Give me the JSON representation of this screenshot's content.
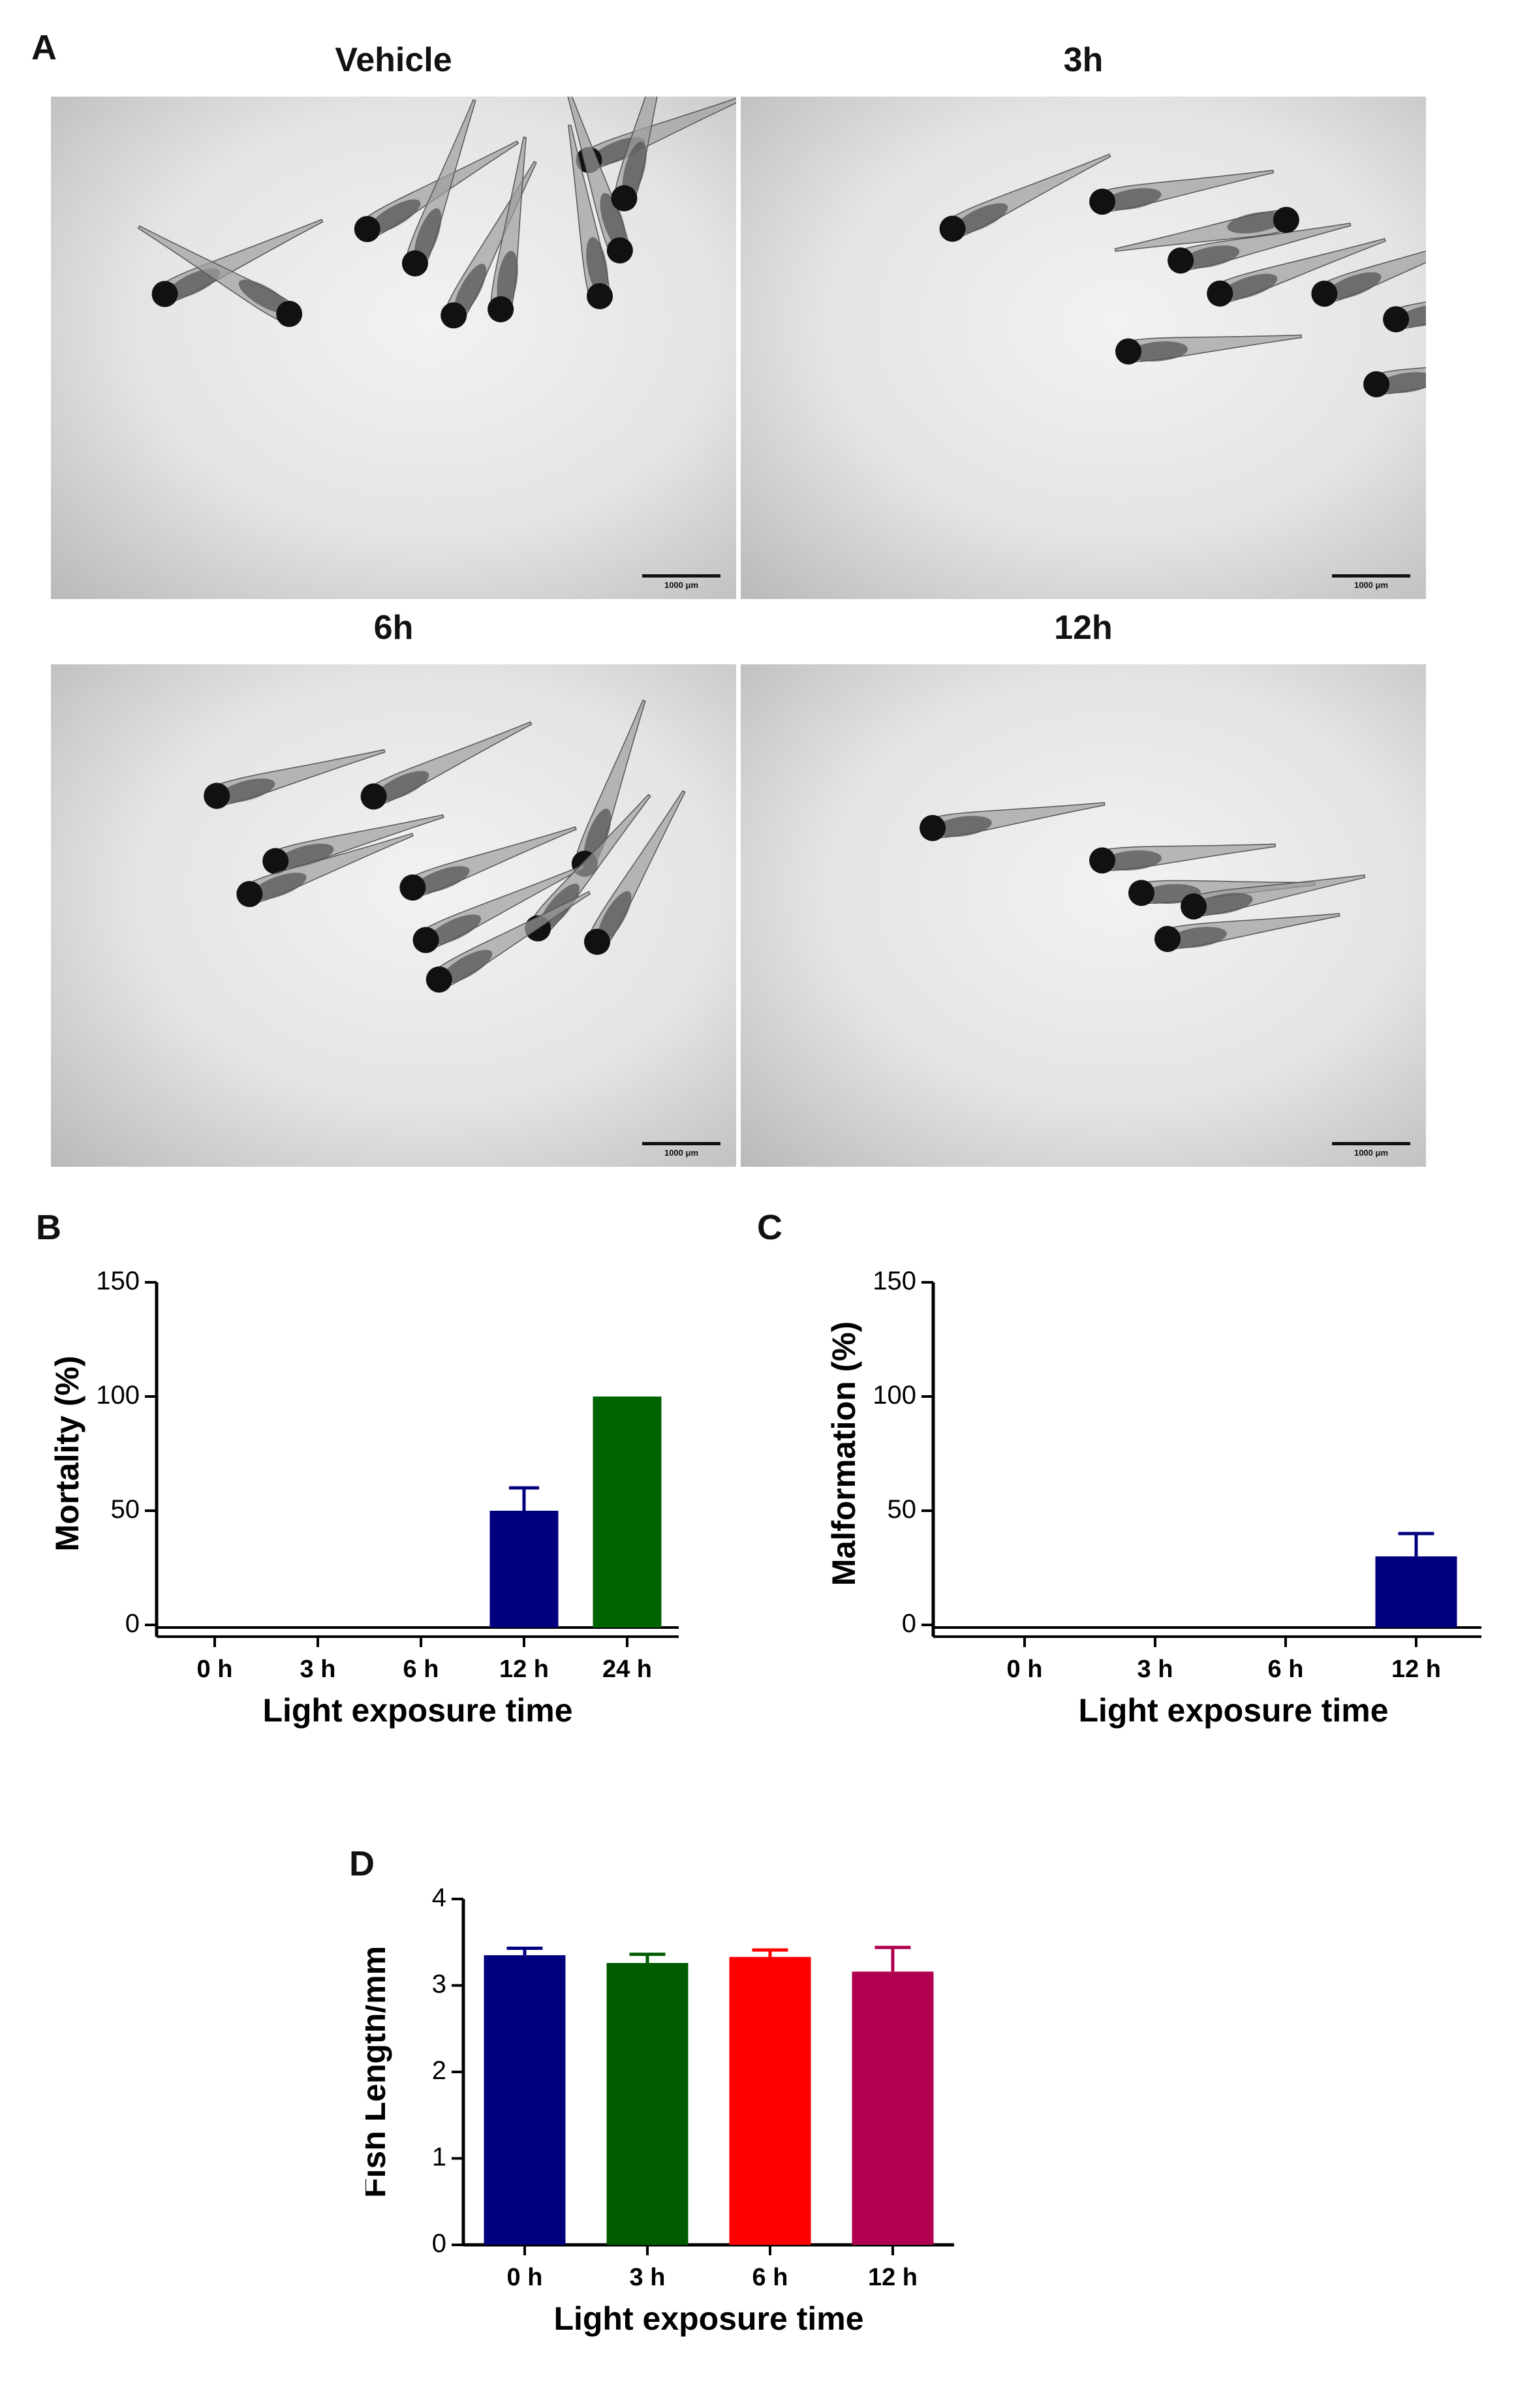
{
  "panels": {
    "a": "A",
    "b": "B",
    "c": "C",
    "d": "D"
  },
  "micrographs": [
    {
      "title": "Vehicle",
      "scale": "1000 μm",
      "fish_count": 10
    },
    {
      "title": "3h",
      "scale": "1000 μm",
      "fish_count": 9
    },
    {
      "title": "6h",
      "scale": "1000 μm",
      "fish_count": 10
    },
    {
      "title": "12h",
      "scale": "1000 μm",
      "fish_count": 5
    }
  ],
  "chart_data": [
    {
      "id": "B",
      "type": "bar",
      "categories": [
        "0 h",
        "3 h",
        "6 h",
        "12 h",
        "24 h"
      ],
      "values": [
        0,
        0,
        0,
        50,
        100
      ],
      "errors": [
        0,
        0,
        0,
        10,
        0
      ],
      "colors": [
        "#00007f",
        "#00007f",
        "#00007f",
        "#00007f",
        "#006400"
      ],
      "xlabel": "Light exposure time",
      "ylabel": "Mortality (%)",
      "ylim": [
        0,
        150
      ],
      "yticks": [
        "0",
        "50",
        "100",
        "150"
      ],
      "axis_break": true
    },
    {
      "id": "C",
      "type": "bar",
      "categories": [
        "0 h",
        "3 h",
        "6 h",
        "12 h"
      ],
      "values": [
        0,
        0,
        0,
        30
      ],
      "errors": [
        0,
        0,
        0,
        10
      ],
      "colors": [
        "#00007f",
        "#00007f",
        "#00007f",
        "#00007f"
      ],
      "xlabel": "Light exposure time",
      "ylabel": "Malformation (%)",
      "ylim": [
        0,
        150
      ],
      "yticks": [
        "0",
        "50",
        "100",
        "150"
      ],
      "axis_break": true
    },
    {
      "id": "D",
      "type": "bar",
      "categories": [
        "0 h",
        "3 h",
        "6 h",
        "12 h"
      ],
      "values": [
        3.35,
        3.26,
        3.33,
        3.16
      ],
      "errors": [
        0.08,
        0.1,
        0.08,
        0.28
      ],
      "colors": [
        "#00007f",
        "#005a00",
        "#ff0000",
        "#b0004f"
      ],
      "xlabel": "Light exposure time",
      "ylabel": "Fish Length/mm",
      "ylim": [
        0,
        4
      ],
      "yticks": [
        "0",
        "1",
        "2",
        "3",
        "4"
      ],
      "axis_break": false
    }
  ]
}
